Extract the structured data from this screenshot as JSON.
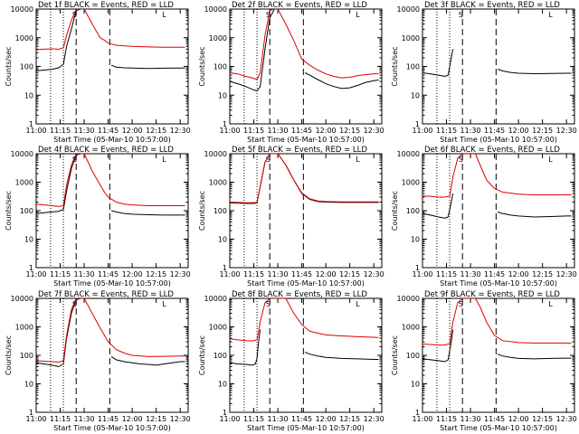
{
  "figure": {
    "x_axis_label": "Start Time (05-Mar-10 10:57:00)",
    "y_axis_label": "Counts/sec",
    "x_ticks": [
      "11:00",
      "11:15",
      "11:30",
      "11:45",
      "12:00",
      "12:15",
      "12:30"
    ],
    "y_ticks": [
      "1",
      "10",
      "100",
      "1000",
      "10000"
    ],
    "flag_labels": [
      "S",
      "L"
    ]
  },
  "chart_data": [
    {
      "type": "line",
      "title": "Det 1f BLACK = Events, RED = LLD",
      "yscale": "log",
      "xlim": [
        "11:00",
        "12:35"
      ],
      "ylim": [
        1,
        10000
      ],
      "series": [
        {
          "color": "#000000",
          "x": [
            "11:00",
            "11:05",
            "11:10",
            "11:14",
            "11:17",
            "11:19",
            "11:22",
            "11:25",
            "11:28",
            "11:30"
          ],
          "values": [
            70,
            75,
            80,
            90,
            120,
            500,
            2000,
            9000,
            10000,
            10000
          ]
        },
        {
          "color": "#000000",
          "x": [
            "11:47",
            "11:50",
            "11:55",
            "12:00",
            "12:10",
            "12:20",
            "12:30",
            "12:33"
          ],
          "values": [
            110,
            95,
            90,
            88,
            85,
            87,
            88,
            88
          ]
        },
        {
          "color": "#e00000",
          "x": [
            "11:00",
            "11:05",
            "11:10",
            "11:14",
            "11:17",
            "11:19",
            "11:22",
            "11:25",
            "11:28",
            "11:30",
            "11:35",
            "11:40",
            "11:43",
            "11:45",
            "11:50",
            "11:55",
            "12:00",
            "12:10",
            "12:20",
            "12:30",
            "12:33"
          ],
          "values": [
            380,
            400,
            410,
            400,
            450,
            1200,
            4000,
            10000,
            10000,
            10000,
            3000,
            1000,
            800,
            650,
            550,
            520,
            500,
            480,
            470,
            470,
            470
          ]
        }
      ]
    },
    {
      "type": "line",
      "title": "Det 2f BLACK = Events, RED = LLD",
      "yscale": "log",
      "xlim": [
        "11:00",
        "12:35"
      ],
      "ylim": [
        1,
        10000
      ],
      "series": [
        {
          "color": "#000000",
          "x": [
            "11:00",
            "11:05",
            "11:10",
            "11:14",
            "11:17",
            "11:19",
            "11:22",
            "11:25",
            "11:28",
            "11:30"
          ],
          "values": [
            30,
            25,
            20,
            16,
            14,
            20,
            400,
            5000,
            10000,
            10000
          ]
        },
        {
          "color": "#000000",
          "x": [
            "11:47",
            "11:50",
            "11:55",
            "12:00",
            "12:05",
            "12:10",
            "12:15",
            "12:20",
            "12:25",
            "12:30",
            "12:33"
          ],
          "values": [
            60,
            50,
            35,
            25,
            20,
            17,
            18,
            22,
            28,
            32,
            34
          ]
        },
        {
          "color": "#e00000",
          "x": [
            "11:00",
            "11:05",
            "11:10",
            "11:14",
            "11:17",
            "11:19",
            "11:22",
            "11:25",
            "11:28",
            "11:30",
            "11:35",
            "11:40",
            "11:45",
            "11:50",
            "11:55",
            "12:00",
            "12:05",
            "12:10",
            "12:15",
            "12:20",
            "12:25",
            "12:30",
            "12:33"
          ],
          "values": [
            60,
            55,
            45,
            40,
            35,
            60,
            1200,
            9000,
            10000,
            10000,
            3000,
            800,
            180,
            110,
            75,
            55,
            45,
            40,
            42,
            48,
            52,
            55,
            56
          ]
        }
      ]
    },
    {
      "type": "line",
      "title": "Det 3f BLACK = Events, RED = LLD",
      "yscale": "log",
      "xlim": [
        "11:00",
        "12:35"
      ],
      "ylim": [
        1,
        10000
      ],
      "series": [
        {
          "color": "#000000",
          "x": [
            "11:00",
            "11:05",
            "11:10",
            "11:14",
            "11:16",
            "11:18",
            "11:19"
          ],
          "values": [
            60,
            55,
            50,
            45,
            50,
            200,
            400
          ]
        },
        {
          "color": "#000000",
          "x": [
            "11:47",
            "11:50",
            "11:55",
            "12:00",
            "12:10",
            "12:20",
            "12:30",
            "12:33"
          ],
          "values": [
            80,
            70,
            62,
            58,
            56,
            57,
            58,
            58
          ]
        }
      ]
    },
    {
      "type": "line",
      "title": "Det 4f BLACK = Events, RED = LLD",
      "yscale": "log",
      "xlim": [
        "11:00",
        "12:35"
      ],
      "ylim": [
        1,
        10000
      ],
      "series": [
        {
          "color": "#000000",
          "x": [
            "11:00",
            "11:05",
            "11:10",
            "11:14",
            "11:17",
            "11:19",
            "11:22",
            "11:25",
            "11:28",
            "11:30"
          ],
          "values": [
            80,
            85,
            90,
            95,
            110,
            500,
            3000,
            9000,
            10000,
            10000
          ]
        },
        {
          "color": "#000000",
          "x": [
            "11:47",
            "11:50",
            "11:55",
            "12:00",
            "12:10",
            "12:20",
            "12:30",
            "12:33"
          ],
          "values": [
            100,
            90,
            80,
            75,
            72,
            70,
            70,
            70
          ]
        },
        {
          "color": "#e00000",
          "x": [
            "11:00",
            "11:05",
            "11:10",
            "11:14",
            "11:17",
            "11:19",
            "11:22",
            "11:25",
            "11:28",
            "11:30",
            "11:35",
            "11:40",
            "11:43",
            "11:45",
            "11:50",
            "11:55",
            "12:00",
            "12:10",
            "12:20",
            "12:30",
            "12:33"
          ],
          "values": [
            170,
            160,
            150,
            140,
            150,
            800,
            4000,
            10000,
            10000,
            10000,
            2500,
            800,
            420,
            300,
            200,
            170,
            160,
            150,
            150,
            150,
            150
          ]
        }
      ]
    },
    {
      "type": "line",
      "title": "Det 5f BLACK = Events, RED = LLD",
      "yscale": "log",
      "xlim": [
        "11:00",
        "12:35"
      ],
      "ylim": [
        1,
        10000
      ],
      "series": [
        {
          "color": "#000000",
          "x": [
            "11:00",
            "11:05",
            "11:10",
            "11:14",
            "11:17",
            "11:19",
            "11:22",
            "11:25",
            "11:28",
            "11:30",
            "11:35",
            "11:40",
            "11:45",
            "11:50",
            "11:55",
            "12:00",
            "12:10",
            "12:20",
            "12:30",
            "12:33"
          ],
          "values": [
            190,
            185,
            180,
            180,
            185,
            700,
            5000,
            10000,
            10000,
            10000,
            4000,
            1200,
            400,
            250,
            210,
            200,
            195,
            195,
            195,
            195
          ]
        },
        {
          "color": "#e00000",
          "x": [
            "11:00",
            "11:05",
            "11:10",
            "11:14",
            "11:17",
            "11:19",
            "11:22",
            "11:25",
            "11:28",
            "11:30",
            "11:35",
            "11:40",
            "11:45",
            "11:50",
            "11:55",
            "12:00",
            "12:10",
            "12:20",
            "12:30",
            "12:33"
          ],
          "values": [
            200,
            195,
            190,
            190,
            195,
            700,
            5000,
            10000,
            10000,
            10000,
            4000,
            1200,
            420,
            260,
            220,
            210,
            205,
            205,
            205,
            205
          ]
        }
      ]
    },
    {
      "type": "line",
      "title": "Det 6f BLACK = Events, RED = LLD",
      "yscale": "log",
      "xlim": [
        "11:00",
        "12:35"
      ],
      "ylim": [
        1,
        10000
      ],
      "series": [
        {
          "color": "#000000",
          "x": [
            "11:00",
            "11:05",
            "11:10",
            "11:14",
            "11:16",
            "11:18",
            "11:19"
          ],
          "values": [
            80,
            70,
            60,
            55,
            60,
            200,
            400
          ]
        },
        {
          "color": "#000000",
          "x": [
            "11:47",
            "11:50",
            "11:55",
            "12:00",
            "12:10",
            "12:20",
            "12:30",
            "12:33"
          ],
          "values": [
            90,
            80,
            70,
            65,
            60,
            62,
            65,
            65
          ]
        },
        {
          "color": "#e00000",
          "x": [
            "11:00",
            "11:05",
            "11:10",
            "11:14",
            "11:17",
            "11:19",
            "11:22",
            "11:25",
            "11:28",
            "11:30",
            "11:33",
            "11:36",
            "11:40",
            "11:45",
            "11:50",
            "12:00",
            "12:10",
            "12:20",
            "12:30",
            "12:33"
          ],
          "values": [
            330,
            320,
            300,
            300,
            320,
            1500,
            7000,
            10000,
            10000,
            10000,
            10000,
            4000,
            1200,
            600,
            450,
            380,
            360,
            360,
            360,
            360
          ]
        }
      ]
    },
    {
      "type": "line",
      "title": "Det 7f BLACK = Events, RED = LLD",
      "yscale": "log",
      "xlim": [
        "11:00",
        "12:35"
      ],
      "ylim": [
        1,
        10000
      ],
      "series": [
        {
          "color": "#000000",
          "x": [
            "11:00",
            "11:05",
            "11:10",
            "11:14",
            "11:17",
            "11:19",
            "11:22",
            "11:25",
            "11:28",
            "11:30"
          ],
          "values": [
            55,
            50,
            45,
            40,
            50,
            400,
            3000,
            9000,
            10000,
            10000
          ]
        },
        {
          "color": "#000000",
          "x": [
            "11:47",
            "11:50",
            "11:55",
            "12:00",
            "12:05",
            "12:10",
            "12:15",
            "12:20",
            "12:25",
            "12:30",
            "12:33"
          ],
          "values": [
            90,
            70,
            60,
            55,
            50,
            48,
            45,
            50,
            55,
            60,
            60
          ]
        },
        {
          "color": "#e00000",
          "x": [
            "11:00",
            "11:05",
            "11:10",
            "11:14",
            "11:17",
            "11:19",
            "11:22",
            "11:25",
            "11:28",
            "11:30",
            "11:35",
            "11:40",
            "11:45",
            "11:50",
            "11:55",
            "12:00",
            "12:10",
            "12:20",
            "12:30",
            "12:33"
          ],
          "values": [
            65,
            62,
            60,
            58,
            65,
            500,
            4000,
            10000,
            10000,
            10000,
            3000,
            900,
            300,
            160,
            120,
            100,
            90,
            92,
            95,
            95
          ]
        }
      ]
    },
    {
      "type": "line",
      "title": "Det 8f BLACK = Events, RED = LLD",
      "yscale": "log",
      "xlim": [
        "11:00",
        "12:35"
      ],
      "ylim": [
        1,
        10000
      ],
      "series": [
        {
          "color": "#000000",
          "x": [
            "11:00",
            "11:05",
            "11:10",
            "11:14",
            "11:16",
            "11:17",
            "11:18",
            "11:19"
          ],
          "values": [
            55,
            50,
            48,
            45,
            50,
            80,
            300,
            800
          ]
        },
        {
          "color": "#000000",
          "x": [
            "11:47",
            "11:50",
            "11:55",
            "12:00",
            "12:10",
            "12:20",
            "12:30",
            "12:33"
          ],
          "values": [
            130,
            110,
            95,
            85,
            78,
            75,
            72,
            72
          ]
        },
        {
          "color": "#e00000",
          "x": [
            "11:00",
            "11:05",
            "11:10",
            "11:14",
            "11:17",
            "11:19",
            "11:22",
            "11:25",
            "11:28",
            "11:30",
            "11:35",
            "11:40",
            "11:45",
            "11:50",
            "12:00",
            "12:10",
            "12:20",
            "12:30",
            "12:33"
          ],
          "values": [
            380,
            350,
            330,
            320,
            350,
            1500,
            7000,
            10000,
            10000,
            10000,
            10000,
            3000,
            1200,
            700,
            520,
            480,
            450,
            430,
            420
          ]
        }
      ]
    },
    {
      "type": "line",
      "title": "Det 9f BLACK = Events, RED = LLD",
      "yscale": "log",
      "xlim": [
        "11:00",
        "12:35"
      ],
      "ylim": [
        1,
        10000
      ],
      "series": [
        {
          "color": "#000000",
          "x": [
            "11:00",
            "11:05",
            "11:10",
            "11:14",
            "11:16",
            "11:18",
            "11:19"
          ],
          "values": [
            75,
            70,
            65,
            60,
            70,
            300,
            800
          ]
        },
        {
          "color": "#000000",
          "x": [
            "11:47",
            "11:50",
            "11:55",
            "12:00",
            "12:10",
            "12:20",
            "12:30",
            "12:33"
          ],
          "values": [
            110,
            95,
            85,
            78,
            75,
            78,
            80,
            80
          ]
        },
        {
          "color": "#e00000",
          "x": [
            "11:00",
            "11:05",
            "11:10",
            "11:14",
            "11:17",
            "11:19",
            "11:22",
            "11:25",
            "11:28",
            "11:30",
            "11:33",
            "11:36",
            "11:40",
            "11:45",
            "11:50",
            "12:00",
            "12:10",
            "12:20",
            "12:30",
            "12:33"
          ],
          "values": [
            250,
            240,
            230,
            230,
            260,
            1500,
            7000,
            10000,
            10000,
            10000,
            10000,
            5000,
            1500,
            500,
            330,
            280,
            270,
            270,
            270,
            270
          ]
        }
      ]
    }
  ]
}
